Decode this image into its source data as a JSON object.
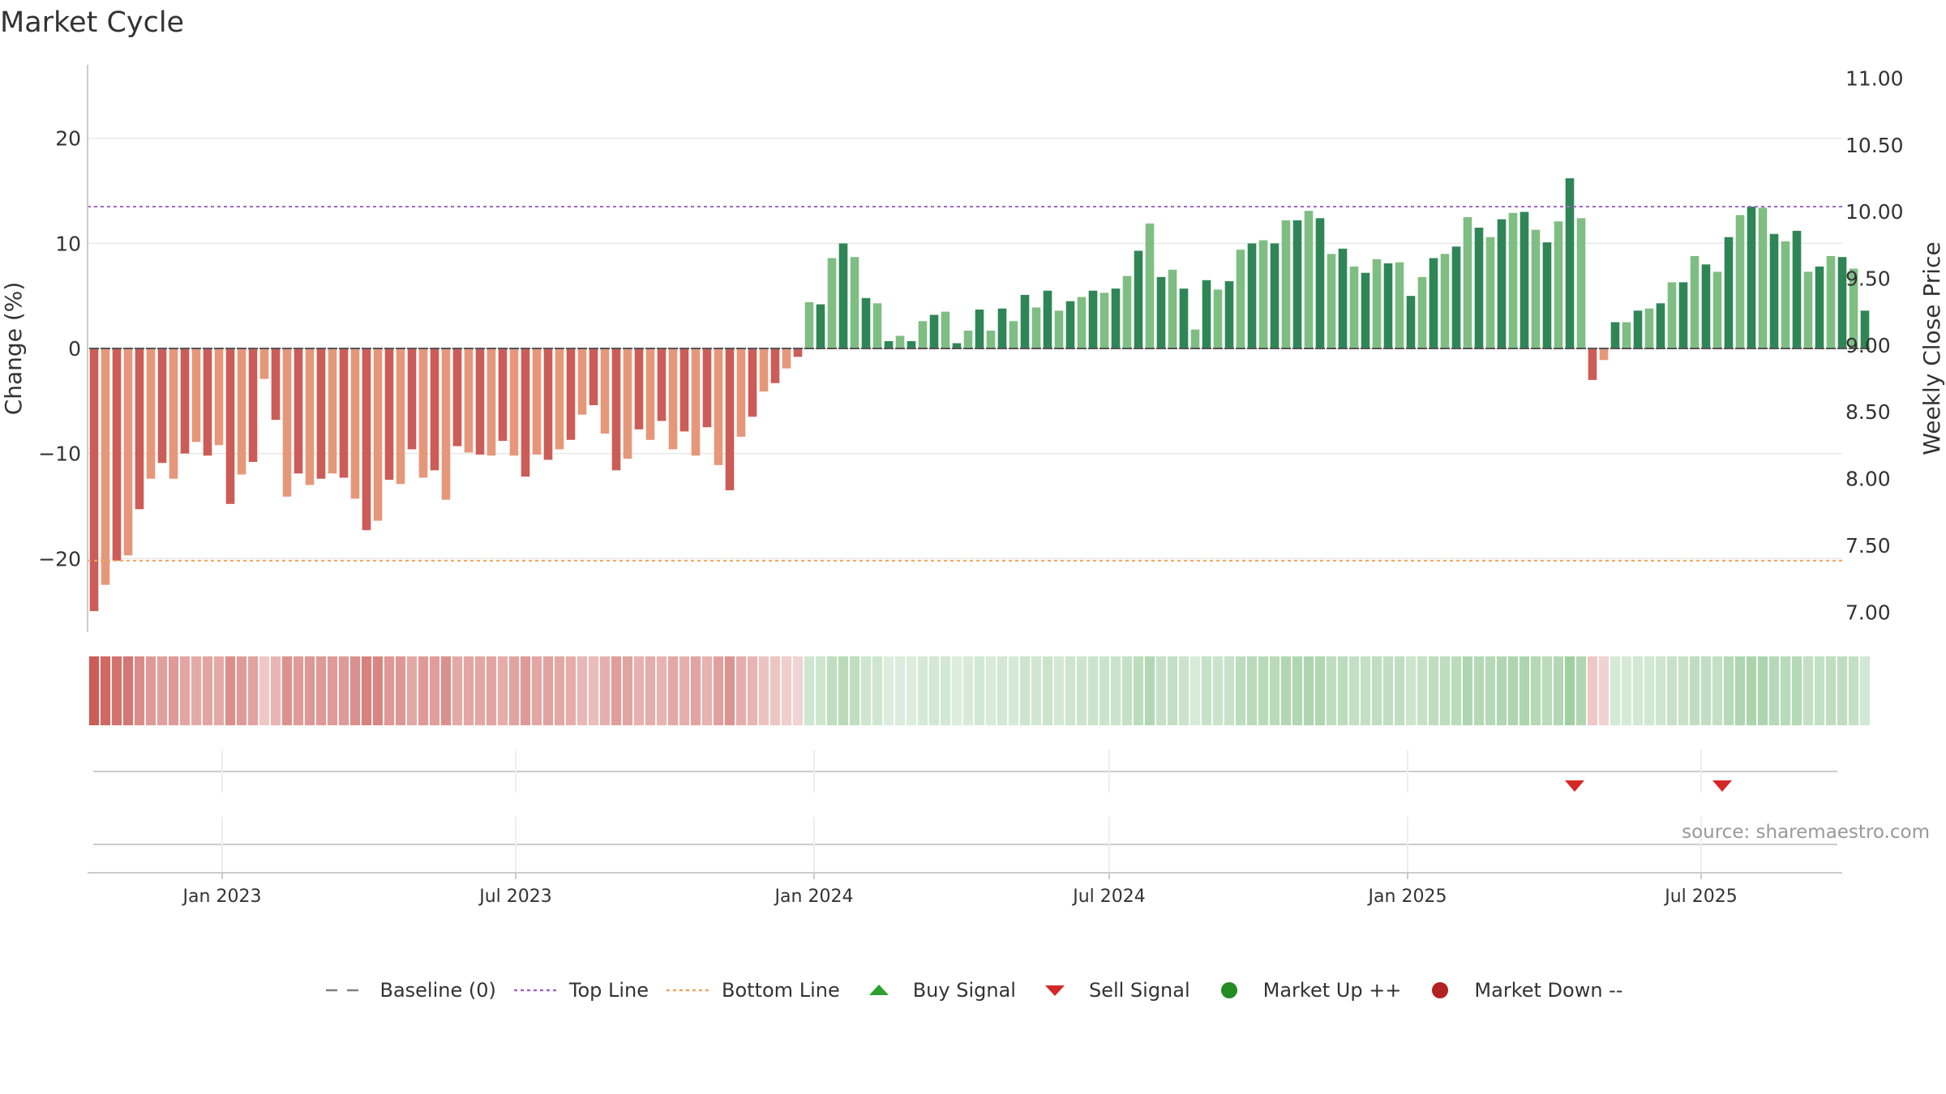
{
  "title": "Market Cycle",
  "source": "source: sharemaestro.com",
  "colors": {
    "up_strong": "#2e8656",
    "up_light": "#7fbe82",
    "down_strong": "#cc5c57",
    "down_light": "#e6977a",
    "top_line": "#a267c4",
    "bottom_line": "#f2a45d",
    "grid": "#e8e8e8",
    "sell": "#d62728",
    "buy": "#2ca02c",
    "market_up": "#228b22",
    "market_down": "#b22222"
  },
  "chart_data": {
    "type": "bar",
    "y_axis_left": {
      "label": "Change (%)",
      "range": [
        -27,
        27
      ],
      "ticks": [
        20,
        10,
        0,
        -10,
        -20
      ]
    },
    "y_axis_right": {
      "label": "Weekly Close Price",
      "range": [
        6.85,
        11.1
      ],
      "ticks": [
        "11.00",
        "10.50",
        "10.00",
        "9.50",
        "9.00",
        "8.50",
        "8.00",
        "7.50",
        "7.00"
      ]
    },
    "x_axis": {
      "start": "2022-10-10",
      "end": "2025-09-26",
      "ticks": [
        {
          "label": "Jan 2023",
          "date": "2023-01-01"
        },
        {
          "label": "Jul 2023",
          "date": "2023-07-01"
        },
        {
          "label": "Jan 2024",
          "date": "2024-01-01"
        },
        {
          "label": "Jul 2024",
          "date": "2024-07-01"
        },
        {
          "label": "Jan 2025",
          "date": "2025-01-01"
        },
        {
          "label": "Jul 2025",
          "date": "2025-07-01"
        }
      ]
    },
    "top_line": 13.5,
    "bottom_line": -20.2,
    "baseline": 0,
    "series": [
      {
        "start_date": "2022-10-14",
        "interval_days": 7,
        "values": [
          -25,
          -22.5,
          -20.2,
          -19.7,
          -15.3,
          -12.4,
          -10.9,
          -12.4,
          -10,
          -8.9,
          -10.2,
          -9.2,
          -14.8,
          -12,
          -10.8,
          -2.9,
          -6.8,
          -14.1,
          -11.9,
          -13,
          -12.4,
          -11.9,
          -12.3,
          -14.3,
          -17.3,
          -16.4,
          -12.5,
          -12.9,
          -9.6,
          -12.3,
          -11.6,
          -14.4,
          -9.3,
          -9.9,
          -10.1,
          -10.2,
          -8.8,
          -10.2,
          -12.2,
          -10.1,
          -10.6,
          -9.6,
          -8.7,
          -6.3,
          -5.4,
          -8.1,
          -11.6,
          -10.5,
          -7.7,
          -8.7,
          -6.9,
          -9.6,
          -7.9,
          -10.2,
          -7.5,
          -11.1,
          -13.5,
          -8.4,
          -6.5,
          -4.1,
          -3.3,
          -1.9,
          -0.8,
          4.4,
          4.2,
          8.6,
          10,
          8.7,
          4.8,
          4.3,
          0.7,
          1.2,
          0.7,
          2.6,
          3.2,
          3.5,
          0.5,
          1.7,
          3.7,
          1.7,
          3.8,
          2.6,
          5.1,
          3.9,
          5.5,
          3.6,
          4.5,
          4.9,
          5.5,
          5.3,
          5.7,
          6.9,
          9.3,
          11.9,
          6.8,
          7.5,
          5.7,
          1.8,
          6.5,
          5.6,
          6.4,
          9.4,
          10,
          10.3,
          10,
          12.2,
          12.2,
          13.1,
          12.4,
          9,
          9.5,
          7.8,
          7.2,
          8.5,
          8.1,
          8.2,
          5,
          6.8,
          8.6,
          9,
          9.7,
          12.5,
          11.5,
          10.6,
          12.3,
          12.9,
          13,
          11.3,
          10.1,
          12.1,
          16.2,
          12.4,
          -3,
          -1.1,
          2.5,
          2.5,
          3.6,
          3.8,
          4.3,
          6.3,
          6.3,
          8.8,
          8,
          7.3,
          10.6,
          12.7,
          13.5,
          13.4,
          10.9,
          10.2,
          11.2,
          7.3,
          7.8,
          8.8,
          8.7,
          7.6,
          3.6
        ]
      }
    ],
    "sell_signals": [
      "2025-04-14",
      "2025-07-14"
    ],
    "buy_signals": [],
    "legend": [
      {
        "label": "Baseline (0)",
        "symbol": "dash",
        "color": "#7f7f7f"
      },
      {
        "label": "Top Line",
        "symbol": "dots",
        "color": "#a267c4"
      },
      {
        "label": "Bottom Line",
        "symbol": "dots",
        "color": "#f2a45d"
      },
      {
        "label": "Buy Signal",
        "symbol": "triangle-up",
        "color": "#2ca02c"
      },
      {
        "label": "Sell Signal",
        "symbol": "triangle-down",
        "color": "#d62728"
      },
      {
        "label": "Market Up ++",
        "symbol": "circle",
        "color": "#228b22"
      },
      {
        "label": "Market Down --",
        "symbol": "circle",
        "color": "#b22222"
      }
    ]
  }
}
